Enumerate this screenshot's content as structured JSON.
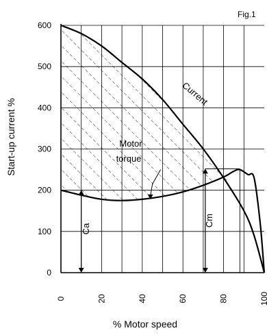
{
  "figure_label": "Fig.1",
  "chart_data": {
    "type": "line",
    "xlabel": "% Motor speed",
    "ylabel": "Start-up current %",
    "xlim": [
      0,
      100
    ],
    "ylim": [
      0,
      600
    ],
    "x_ticks": [
      0,
      20,
      40,
      60,
      80,
      100
    ],
    "y_ticks": [
      0,
      100,
      200,
      300,
      400,
      500,
      600
    ],
    "grid": true,
    "series": [
      {
        "name": "Current",
        "x": [
          0,
          10,
          20,
          30,
          40,
          50,
          60,
          70,
          80,
          90,
          95,
          100
        ],
        "values": [
          600,
          580,
          550,
          510,
          470,
          420,
          360,
          300,
          230,
          150,
          90,
          0
        ]
      },
      {
        "name": "Motor torque",
        "x": [
          0,
          10,
          20,
          30,
          40,
          50,
          60,
          70,
          80,
          85,
          88,
          92,
          95,
          98,
          100
        ],
        "values": [
          200,
          188,
          178,
          175,
          178,
          185,
          196,
          212,
          232,
          246,
          250,
          238,
          230,
          120,
          0
        ]
      }
    ],
    "annotations": [
      {
        "label": "Current",
        "x": 70,
        "y": 400
      },
      {
        "label": "Motor",
        "x": 44,
        "y": 315
      },
      {
        "label": "torque",
        "x": 44,
        "y": 285
      },
      {
        "label": "Ca",
        "x": 12,
        "y": 100
      },
      {
        "label": "Cm",
        "x": 72,
        "y": 150
      }
    ],
    "shaded_region": "between Current and Motor torque (hatched)"
  }
}
